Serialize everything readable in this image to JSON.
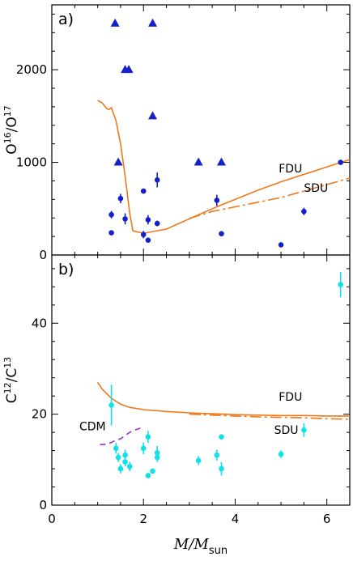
{
  "chart_data": [
    {
      "type": "scatter",
      "panel_label": "a)",
      "ylabel_main": "O",
      "ylabel_sup1": "16",
      "ylabel_mid": "/O",
      "ylabel_sup2": "17",
      "xlim": [
        0,
        6.5
      ],
      "ylim": [
        0,
        2700
      ],
      "x_ticks": [
        0,
        2,
        4,
        6
      ],
      "y_ticks": [
        0,
        1000,
        2000
      ],
      "y_tick_labels": [
        "0",
        "1000",
        "2000"
      ],
      "series": [
        {
          "kind": "lower-limit",
          "marker": "triangle",
          "color": "#1420c8",
          "points": [
            [
              1.38,
              2500
            ],
            [
              1.6,
              2000
            ],
            [
              1.68,
              2000
            ],
            [
              2.2,
              2500
            ],
            [
              2.2,
              1500
            ],
            [
              1.45,
              1000
            ],
            [
              3.2,
              1000
            ],
            [
              3.7,
              1000
            ]
          ]
        },
        {
          "kind": "measurement",
          "marker": "circle",
          "color": "#1420c8",
          "points": [
            {
              "x": 1.3,
              "y": 435,
              "err": 40
            },
            {
              "x": 1.3,
              "y": 240,
              "err": 0
            },
            {
              "x": 1.5,
              "y": 610,
              "err": 50
            },
            {
              "x": 1.6,
              "y": 390,
              "err": 60
            },
            {
              "x": 2.0,
              "y": 690,
              "err": 0
            },
            {
              "x": 2.0,
              "y": 220,
              "err": 40
            },
            {
              "x": 2.1,
              "y": 380,
              "err": 50
            },
            {
              "x": 2.1,
              "y": 160,
              "err": 0
            },
            {
              "x": 2.3,
              "y": 810,
              "err": 80
            },
            {
              "x": 2.3,
              "y": 340,
              "err": 30
            },
            {
              "x": 3.6,
              "y": 590,
              "err": 60
            },
            {
              "x": 3.7,
              "y": 230,
              "err": 0
            },
            {
              "x": 5.0,
              "y": 110,
              "err": 0
            },
            {
              "x": 5.5,
              "y": 470,
              "err": 40
            },
            {
              "x": 6.3,
              "y": 1000,
              "err": 0
            }
          ]
        },
        {
          "name": "FDU",
          "kind": "model",
          "style": "solid",
          "color": "#f07818",
          "points": [
            [
              1.0,
              1670
            ],
            [
              1.1,
              1640
            ],
            [
              1.2,
              1580
            ],
            [
              1.25,
              1570
            ],
            [
              1.3,
              1590
            ],
            [
              1.4,
              1450
            ],
            [
              1.5,
              1200
            ],
            [
              1.6,
              850
            ],
            [
              1.7,
              450
            ],
            [
              1.77,
              260
            ],
            [
              2.0,
              235
            ],
            [
              2.5,
              280
            ],
            [
              3.0,
              390
            ],
            [
              3.5,
              500
            ],
            [
              4.0,
              600
            ],
            [
              4.5,
              700
            ],
            [
              5.0,
              790
            ],
            [
              5.5,
              870
            ],
            [
              6.0,
              950
            ],
            [
              6.5,
              1030
            ]
          ]
        },
        {
          "name": "SDU",
          "kind": "model",
          "style": "dashdot",
          "color": "#f07818",
          "points": [
            [
              3.0,
              395
            ],
            [
              3.5,
              470
            ],
            [
              4.0,
              520
            ],
            [
              4.5,
              570
            ],
            [
              5.0,
              620
            ],
            [
              5.5,
              690
            ],
            [
              6.0,
              760
            ],
            [
              6.5,
              830
            ]
          ]
        }
      ],
      "annotations": [
        {
          "text": "FDU",
          "x": 4.95,
          "y": 890
        },
        {
          "text": "SDU",
          "x": 5.5,
          "y": 680
        }
      ]
    },
    {
      "type": "scatter",
      "panel_label": "b)",
      "ylabel_main": "C",
      "ylabel_sup1": "12",
      "ylabel_mid": "/C",
      "ylabel_sup2": "13",
      "xlabel_main": "M/M",
      "xlabel_sub": "sun",
      "xlim": [
        0,
        6.5
      ],
      "ylim": [
        0,
        55
      ],
      "x_ticks": [
        0,
        2,
        4,
        6
      ],
      "x_tick_labels": [
        "0",
        "2",
        "4",
        "6"
      ],
      "y_ticks": [
        0,
        20,
        40
      ],
      "y_tick_labels": [
        "0",
        "20",
        "40"
      ],
      "series": [
        {
          "kind": "measurement",
          "marker": "circle",
          "color": "#10e0e8",
          "points": [
            {
              "x": 1.3,
              "y": 22,
              "err": 4.5
            },
            {
              "x": 1.4,
              "y": 12.5,
              "err": 1.2
            },
            {
              "x": 1.45,
              "y": 10.5,
              "err": 1.0
            },
            {
              "x": 1.5,
              "y": 8,
              "err": 1.0
            },
            {
              "x": 1.6,
              "y": 11,
              "err": 1.2
            },
            {
              "x": 1.6,
              "y": 9.5,
              "err": 1.0
            },
            {
              "x": 1.7,
              "y": 8.5,
              "err": 1.0
            },
            {
              "x": 2.0,
              "y": 12.5,
              "err": 1.3
            },
            {
              "x": 2.1,
              "y": 15,
              "err": 1.3
            },
            {
              "x": 2.1,
              "y": 6.5,
              "err": 0
            },
            {
              "x": 2.2,
              "y": 7.5,
              "err": 0
            },
            {
              "x": 2.3,
              "y": 11.5,
              "err": 1.5
            },
            {
              "x": 2.3,
              "y": 10.5,
              "err": 1.0
            },
            {
              "x": 3.2,
              "y": 9.8,
              "err": 1.0
            },
            {
              "x": 3.6,
              "y": 11,
              "err": 1.2
            },
            {
              "x": 3.7,
              "y": 15,
              "err": 0
            },
            {
              "x": 3.7,
              "y": 8,
              "err": 1.5
            },
            {
              "x": 5.0,
              "y": 11.2,
              "err": 0.8
            },
            {
              "x": 5.5,
              "y": 16.5,
              "err": 1.5
            },
            {
              "x": 6.3,
              "y": 48.5,
              "err": 2.8
            }
          ]
        },
        {
          "name": "FDU",
          "kind": "model",
          "style": "solid",
          "color": "#f07818",
          "points": [
            [
              1.0,
              27
            ],
            [
              1.1,
              25.5
            ],
            [
              1.2,
              24.5
            ],
            [
              1.3,
              23.5
            ],
            [
              1.5,
              22.2
            ],
            [
              1.7,
              21.5
            ],
            [
              2.0,
              21
            ],
            [
              2.5,
              20.6
            ],
            [
              3.0,
              20.3
            ],
            [
              3.5,
              20.1
            ],
            [
              4.0,
              19.9
            ],
            [
              4.5,
              19.8
            ],
            [
              5.0,
              19.7
            ],
            [
              5.5,
              19.7
            ],
            [
              6.0,
              19.6
            ],
            [
              6.5,
              19.6
            ]
          ]
        },
        {
          "name": "SDU",
          "kind": "model",
          "style": "dashdot",
          "color": "#f07818",
          "points": [
            [
              3.0,
              20.0
            ],
            [
              3.5,
              19.8
            ],
            [
              4.0,
              19.6
            ],
            [
              4.5,
              19.4
            ],
            [
              5.0,
              19.3
            ],
            [
              5.5,
              19.2
            ],
            [
              6.0,
              19.0
            ],
            [
              6.5,
              18.9
            ]
          ]
        },
        {
          "name": "CDM",
          "kind": "model",
          "style": "dashed",
          "color": "#9b30d0",
          "points": [
            [
              1.05,
              13.3
            ],
            [
              1.2,
              13.4
            ],
            [
              1.3,
              13.8
            ],
            [
              1.4,
              14.3
            ],
            [
              1.5,
              14.6
            ],
            [
              1.6,
              15.3
            ],
            [
              1.7,
              16.0
            ],
            [
              1.8,
              16.5
            ],
            [
              1.9,
              16.8
            ],
            [
              2.0,
              17.5
            ]
          ]
        }
      ],
      "annotations": [
        {
          "text": "FDU",
          "x": 4.95,
          "y": 23
        },
        {
          "text": "SDU",
          "x": 4.85,
          "y": 15.7
        },
        {
          "text": "CDM",
          "x": 0.6,
          "y": 16.5
        }
      ]
    }
  ]
}
